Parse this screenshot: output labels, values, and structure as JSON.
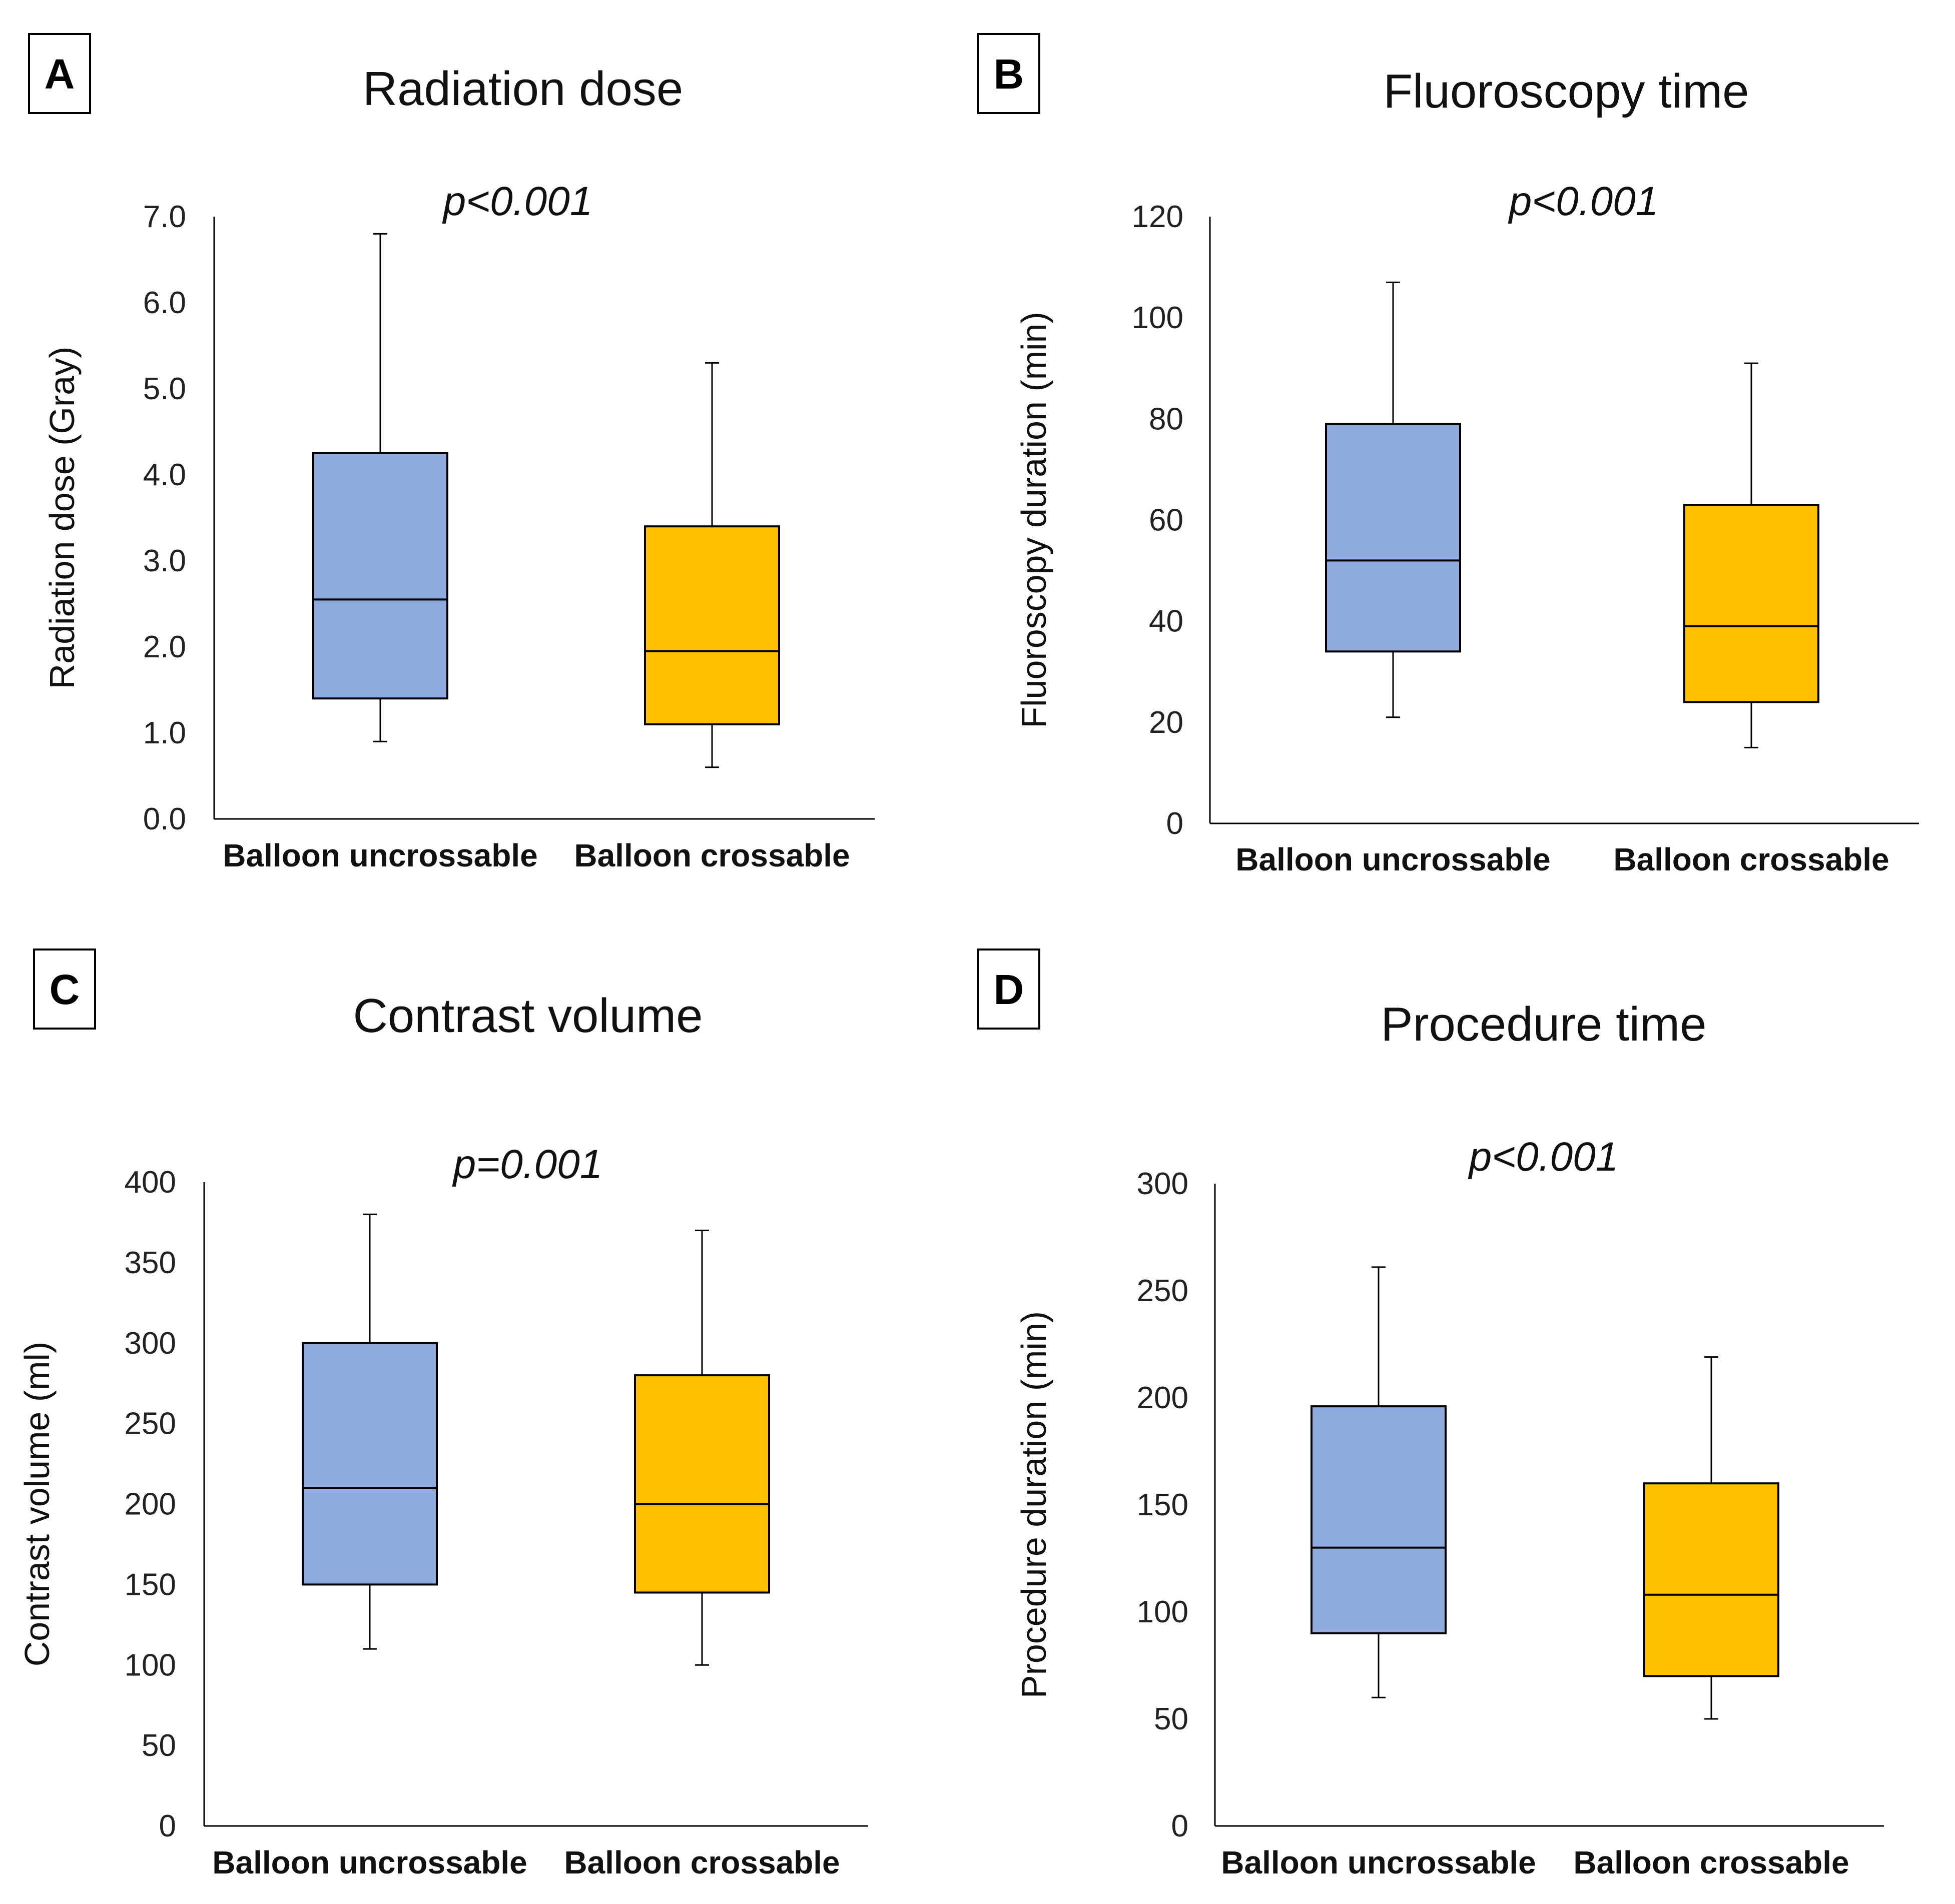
{
  "colors": {
    "uncrossable": "#8faadc",
    "crossable": "#ffc000",
    "line": "#000000"
  },
  "chart_data": [
    {
      "panel": "A",
      "type": "box",
      "title": "Radiation dose",
      "annotation": "p<0.001",
      "ylabel": "Radiation dose (Gray)",
      "ylim": [
        0,
        7
      ],
      "ticks": [
        "0.0",
        "1.0",
        "2.0",
        "3.0",
        "4.0",
        "5.0",
        "6.0",
        "7.0"
      ],
      "tick_values": [
        0,
        1,
        2,
        3,
        4,
        5,
        6,
        7
      ],
      "categories": [
        "Balloon uncrossable",
        "Balloon crossable"
      ],
      "boxes": [
        {
          "min": 0.9,
          "q1": 1.4,
          "median": 2.55,
          "q3": 4.25,
          "max": 6.8
        },
        {
          "min": 0.6,
          "q1": 1.1,
          "median": 1.95,
          "q3": 3.4,
          "max": 5.3
        }
      ]
    },
    {
      "panel": "B",
      "type": "box",
      "title": "Fluoroscopy time",
      "annotation": "p<0.001",
      "ylabel": "Fluoroscopy duration (min)",
      "ylim": [
        0,
        120
      ],
      "ticks": [
        "0",
        "20",
        "40",
        "60",
        "80",
        "100",
        "120"
      ],
      "tick_values": [
        0,
        20,
        40,
        60,
        80,
        100,
        120
      ],
      "categories": [
        "Balloon uncrossable",
        "Balloon crossable"
      ],
      "boxes": [
        {
          "min": 21,
          "q1": 34,
          "median": 52,
          "q3": 79,
          "max": 107
        },
        {
          "min": 15,
          "q1": 24,
          "median": 39,
          "q3": 63,
          "max": 91
        }
      ]
    },
    {
      "panel": "C",
      "type": "box",
      "title": "Contrast volume",
      "annotation": "p=0.001",
      "ylabel": "Contrast volume (ml)",
      "ylim": [
        0,
        400
      ],
      "ticks": [
        "0",
        "50",
        "100",
        "150",
        "200",
        "250",
        "300",
        "350",
        "400"
      ],
      "tick_values": [
        0,
        50,
        100,
        150,
        200,
        250,
        300,
        350,
        400
      ],
      "categories": [
        "Balloon uncrossable",
        "Balloon crossable"
      ],
      "boxes": [
        {
          "min": 110,
          "q1": 150,
          "median": 210,
          "q3": 300,
          "max": 380
        },
        {
          "min": 100,
          "q1": 145,
          "median": 200,
          "q3": 280,
          "max": 370
        }
      ]
    },
    {
      "panel": "D",
      "type": "box",
      "title": "Procedure time",
      "annotation": "p<0.001",
      "ylabel": "Procedure duration (min)",
      "ylim": [
        0,
        300
      ],
      "ticks": [
        "0",
        "50",
        "100",
        "150",
        "200",
        "250",
        "300"
      ],
      "tick_values": [
        0,
        50,
        100,
        150,
        200,
        250,
        300
      ],
      "categories": [
        "Balloon uncrossable",
        "Balloon crossable"
      ],
      "boxes": [
        {
          "min": 60,
          "q1": 90,
          "median": 130,
          "q3": 196,
          "max": 261
        },
        {
          "min": 50,
          "q1": 70,
          "median": 108,
          "q3": 160,
          "max": 219
        }
      ]
    }
  ]
}
